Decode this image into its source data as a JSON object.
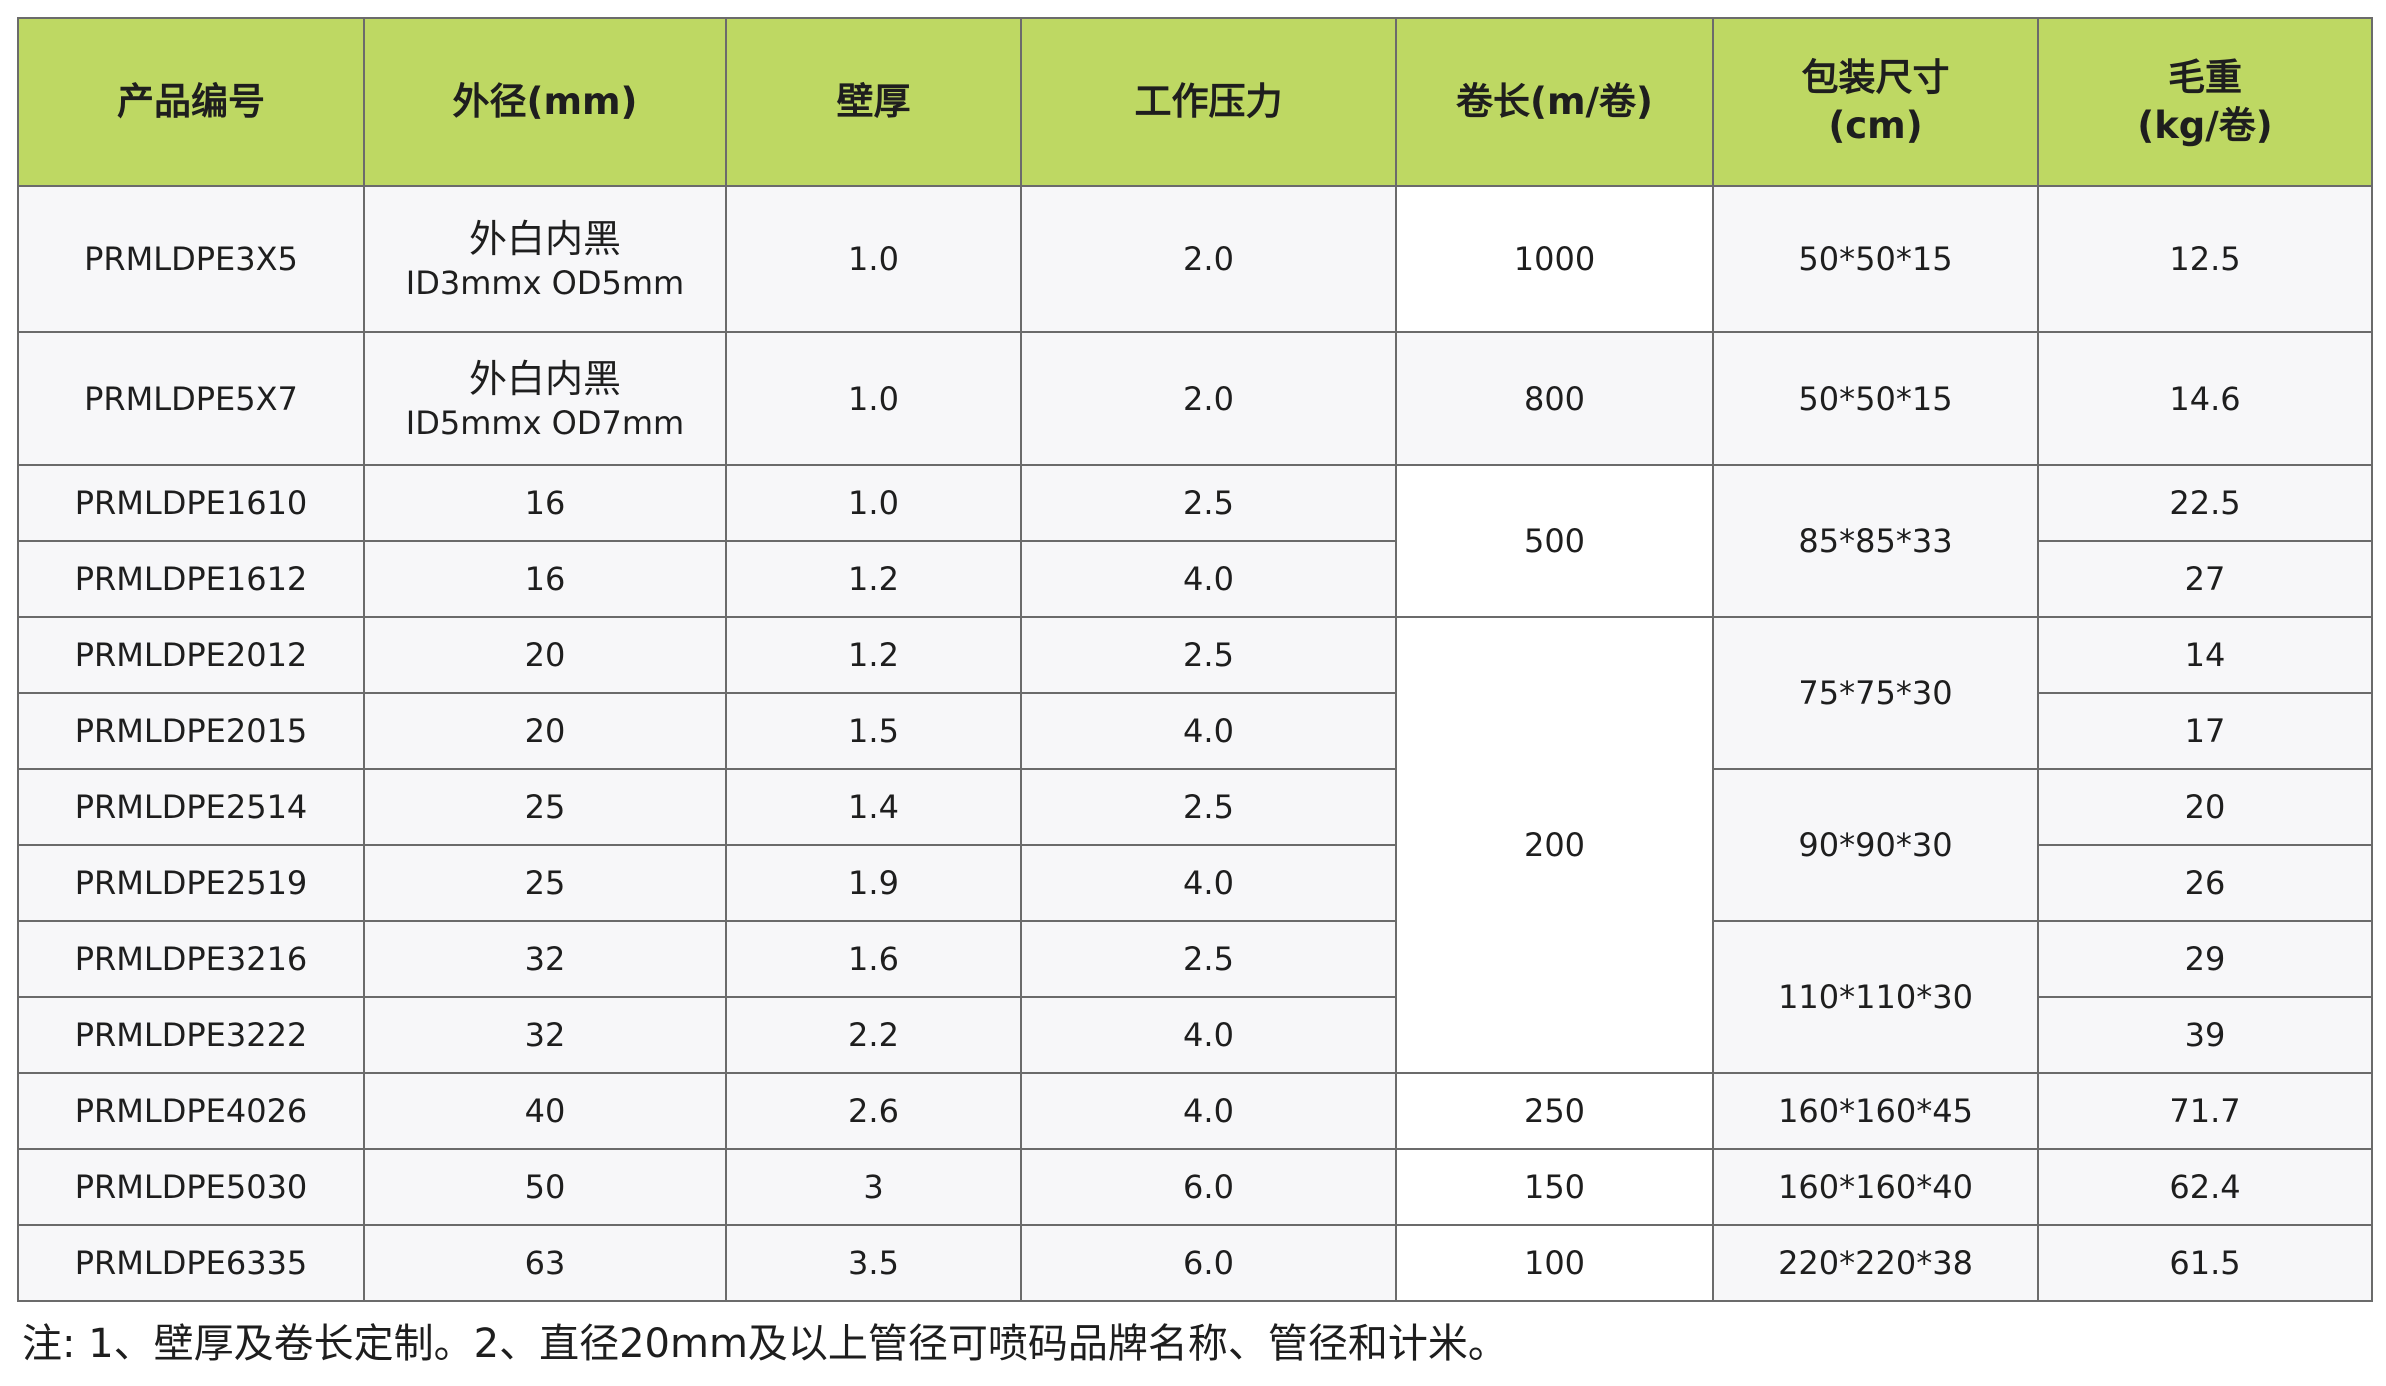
{
  "table": {
    "headers": [
      [
        "产品编号"
      ],
      [
        "外径(mm)"
      ],
      [
        "壁厚"
      ],
      [
        "工作压力"
      ],
      [
        "卷长(m/卷)"
      ],
      [
        "包装尺寸",
        "(cm)"
      ],
      [
        "毛重",
        "(kg/卷)"
      ]
    ],
    "rows": [
      {
        "code": "PRMLDPE3X5",
        "od_cn": "外白内黑",
        "od_en": "ID3mmx OD5mm",
        "wall": "1.0",
        "pressure": "2.0",
        "length": "1000",
        "pack": "50*50*15",
        "weight": "12.5"
      },
      {
        "code": "PRMLDPE5X7",
        "od_cn": "外白内黑",
        "od_en": "ID5mmx OD7mm",
        "wall": "1.0",
        "pressure": "2.0",
        "length": "800",
        "pack": "50*50*15",
        "weight": "14.6"
      },
      {
        "code": "PRMLDPE1610",
        "od": "16",
        "wall": "1.0",
        "pressure": "2.5",
        "length": "500",
        "pack": "85*85*33",
        "weight": "22.5"
      },
      {
        "code": "PRMLDPE1612",
        "od": "16",
        "wall": "1.2",
        "pressure": "4.0",
        "weight": "27"
      },
      {
        "code": "PRMLDPE2012",
        "od": "20",
        "wall": "1.2",
        "pressure": "2.5",
        "length": "200",
        "pack": "75*75*30",
        "weight": "14"
      },
      {
        "code": "PRMLDPE2015",
        "od": "20",
        "wall": "1.5",
        "pressure": "4.0",
        "weight": "17"
      },
      {
        "code": "PRMLDPE2514",
        "od": "25",
        "wall": "1.4",
        "pressure": "2.5",
        "pack": "90*90*30",
        "weight": "20"
      },
      {
        "code": "PRMLDPE2519",
        "od": "25",
        "wall": "1.9",
        "pressure": "4.0",
        "weight": "26"
      },
      {
        "code": "PRMLDPE3216",
        "od": "32",
        "wall": "1.6",
        "pressure": "2.5",
        "pack": "110*110*30",
        "weight": "29"
      },
      {
        "code": "PRMLDPE3222",
        "od": "32",
        "wall": "2.2",
        "pressure": "4.0",
        "weight": "39"
      },
      {
        "code": "PRMLDPE4026",
        "od": "40",
        "wall": "2.6",
        "pressure": "4.0",
        "length": "250",
        "pack": "160*160*45",
        "weight": "71.7"
      },
      {
        "code": "PRMLDPE5030",
        "od": "50",
        "wall": "3",
        "pressure": "6.0",
        "length": "150",
        "pack": "160*160*40",
        "weight": "62.4"
      },
      {
        "code": "PRMLDPE6335",
        "od": "63",
        "wall": "3.5",
        "pressure": "6.0",
        "length": "100",
        "pack": "220*220*38",
        "weight": "61.5"
      }
    ]
  },
  "footnote": "注: 1、壁厚及卷长定制。2、直径20mm及以上管径可喷码品牌名称、管径和计米。"
}
